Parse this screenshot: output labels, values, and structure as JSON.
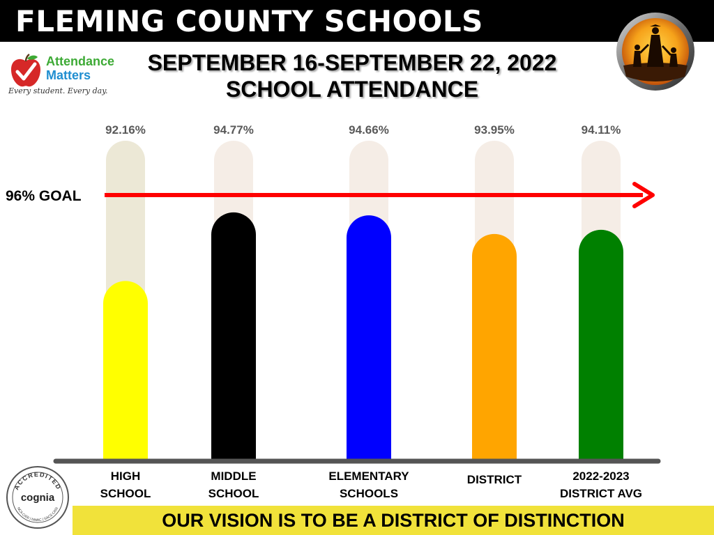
{
  "header": {
    "title": "FLEMING COUNTY SCHOOLS",
    "subtitle_line1": "SEPTEMBER 16-SEPTEMBER 22, 2022",
    "subtitle_line2": "SCHOOL ATTENDANCE"
  },
  "logo": {
    "line1": "Attendance",
    "line2": "Matters",
    "tagline": "Every student. Every day."
  },
  "accreditation": {
    "ring_text": "ACCREDITED",
    "name": "cognia",
    "bottom_text": "NCA CASI | NWAC | SACS CASI"
  },
  "footer": {
    "vision": "OUR VISION IS TO BE A DISTRICT OF DISTINCTION"
  },
  "colors": {
    "goal_arrow": "#ff0000",
    "axis": "#555555",
    "banner_yellow": "#f1e23a"
  },
  "chart_data": {
    "type": "bar",
    "title": "SCHOOL ATTENDANCE",
    "xlabel": "",
    "ylabel": "",
    "grid": false,
    "goal": {
      "label": "96% GOAL",
      "value": 96
    },
    "categories": [
      [
        "HIGH",
        "SCHOOL"
      ],
      [
        "MIDDLE",
        "SCHOOL"
      ],
      [
        "ELEMENTARY",
        "SCHOOLS"
      ],
      [
        "DISTRICT"
      ],
      [
        "2022-2023",
        "DISTRICT AVG"
      ]
    ],
    "values": [
      92.16,
      94.77,
      94.66,
      93.95,
      94.11
    ],
    "value_labels": [
      "92.16%",
      "94.77%",
      "94.66%",
      "93.95%",
      "94.11%"
    ],
    "bar_colors": [
      "#ffff00",
      "#000000",
      "#0000ff",
      "#ffa500",
      "#008000"
    ],
    "track_colors": [
      "#ece8d6",
      "#f5ede6",
      "#f5ede6",
      "#f5ede6",
      "#f5ede6"
    ]
  }
}
